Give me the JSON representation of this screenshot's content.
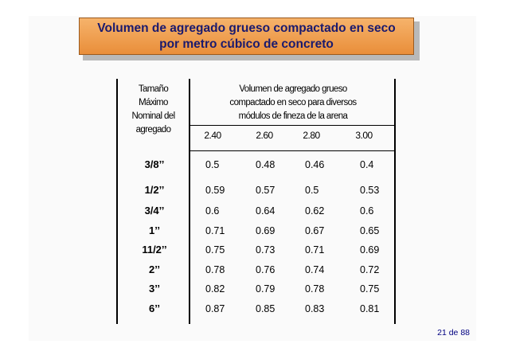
{
  "slide": {
    "title_line1": "Volumen de agregado grueso compactado en seco",
    "title_line2": "por metro cúbico de concreto",
    "page_indicator": "21 de 88"
  },
  "table": {
    "left_header": [
      "Tamaño",
      "Máximo",
      "Nominal del",
      "agregado"
    ],
    "right_header": [
      "Volumen de agregado grueso",
      "compactado en seco para diversos",
      "módulos de fineza de la arena"
    ],
    "columns": [
      "2.40",
      "2.60",
      "2.80",
      "3.00"
    ],
    "rows": [
      {
        "size": "3/8’’",
        "values": [
          "0.5",
          "0.48",
          "0.46",
          "0.4"
        ]
      },
      {
        "size": "1/2’’",
        "values": [
          "0.59",
          "0.57",
          "0.5",
          "0.53"
        ]
      },
      {
        "size": "3/4’’",
        "values": [
          "0.6",
          "0.64",
          "0.62",
          "0.6"
        ]
      },
      {
        "size": "1’’",
        "values": [
          "0.71",
          "0.69",
          "0.67",
          "0.65"
        ]
      },
      {
        "size": "11/2’’",
        "values": [
          "0.75",
          "0.73",
          "0.71",
          "0.69"
        ]
      },
      {
        "size": "2’’",
        "values": [
          "0.78",
          "0.76",
          "0.74",
          "0.72"
        ]
      },
      {
        "size": "3’’",
        "values": [
          "0.82",
          "0.79",
          "0.78",
          "0.75"
        ]
      },
      {
        "size": "6’’",
        "values": [
          "0.87",
          "0.85",
          "0.83",
          "0.81"
        ]
      }
    ]
  }
}
